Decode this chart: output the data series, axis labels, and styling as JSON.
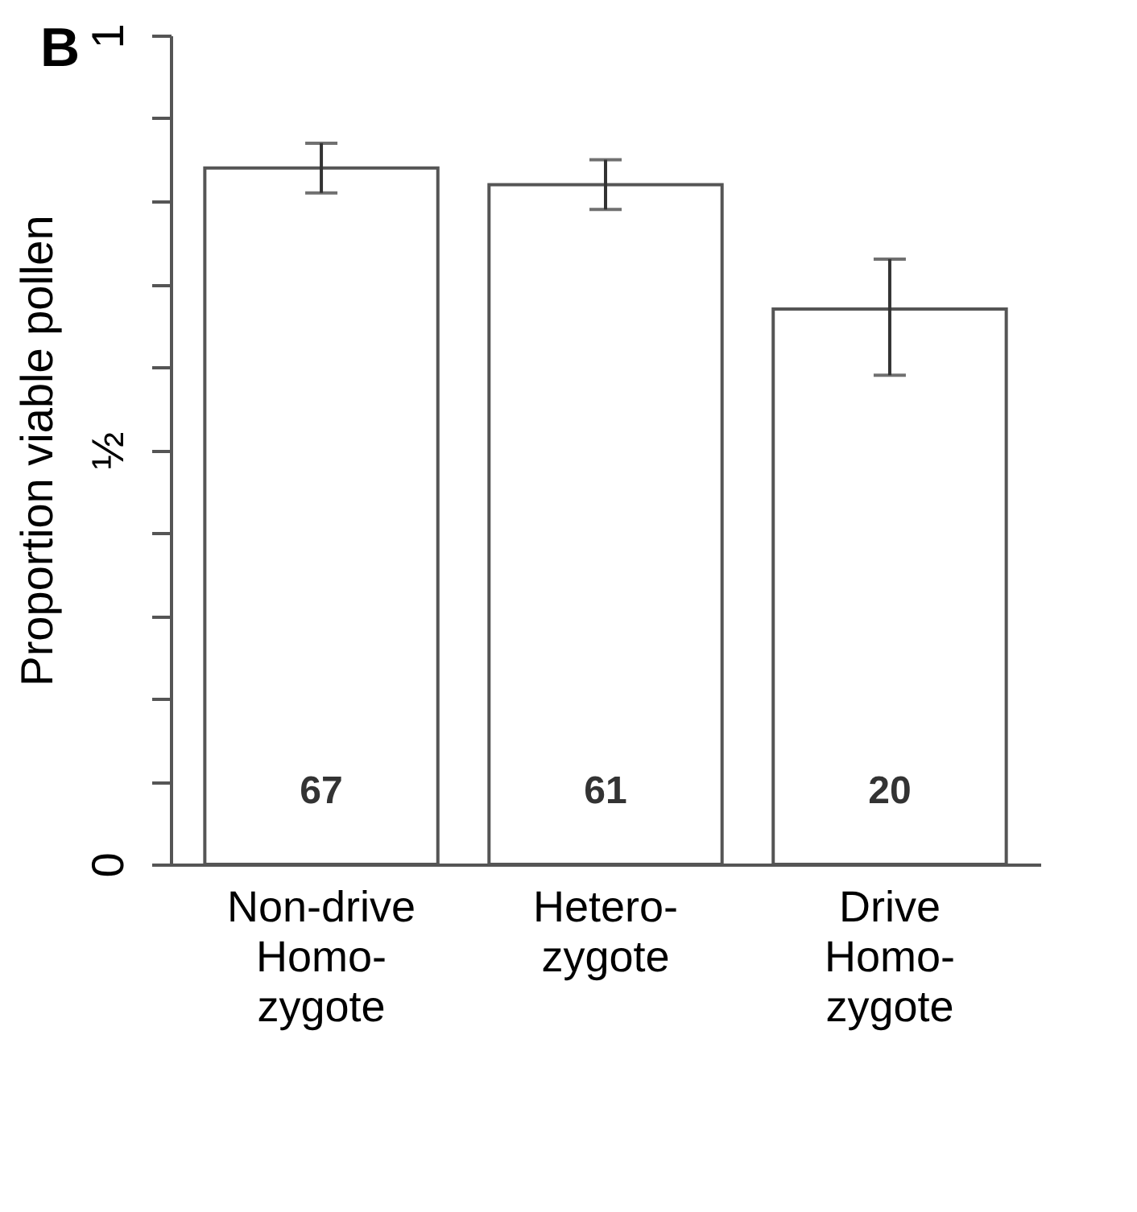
{
  "chart_data": {
    "type": "bar",
    "title": "B",
    "ylabel": "Proportion viable pollen",
    "categories": [
      "Non-drive\nHomo-\nzygote",
      "Hetero-\nzygote",
      "Drive\nHomo-\nzygote"
    ],
    "values": [
      0.84,
      0.82,
      0.67
    ],
    "color": "#ffffff",
    "errors": [
      [
        0.81,
        0.87
      ],
      [
        0.79,
        0.85
      ],
      [
        0.59,
        0.73
      ]
    ],
    "ylim": [
      0,
      1
    ],
    "yticks": [
      0,
      {
        "value": 0.1,
        "label": null
      },
      {
        "value": 0.2,
        "label": null
      },
      {
        "value": 0.3,
        "label": null
      },
      {
        "value": 0.4,
        "label": null
      },
      {
        "value": 0.5,
        "label": "½"
      },
      {
        "value": 0.6,
        "label": null
      },
      {
        "value": 0.7,
        "label": null
      },
      {
        "value": 0.8,
        "label": null
      },
      {
        "value": 0.9,
        "label": null
      },
      1
    ],
    "annotations": [
      "67",
      "61",
      "20"
    ],
    "grid": false
  }
}
